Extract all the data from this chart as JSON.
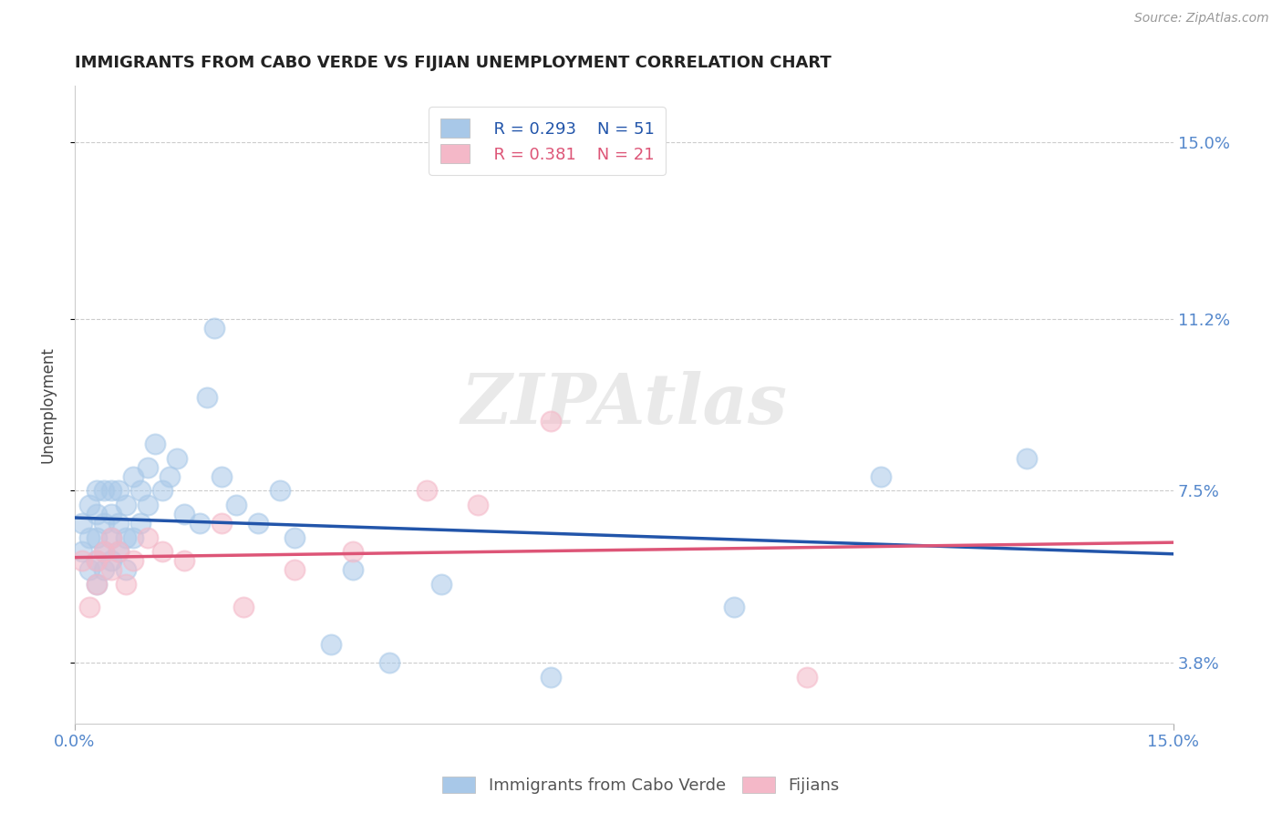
{
  "title": "IMMIGRANTS FROM CABO VERDE VS FIJIAN UNEMPLOYMENT CORRELATION CHART",
  "source_text": "Source: ZipAtlas.com",
  "ylabel": "Unemployment",
  "xlim": [
    0.0,
    0.15
  ],
  "ylim": [
    0.025,
    0.162
  ],
  "ytick_positions": [
    0.038,
    0.075,
    0.112,
    0.15
  ],
  "ytick_labels": [
    "3.8%",
    "7.5%",
    "11.2%",
    "15.0%"
  ],
  "cabo_verde_color": "#a8c8e8",
  "fijian_color": "#f4b8c8",
  "cabo_verde_line_color": "#2255aa",
  "fijian_line_color": "#dd5577",
  "legend_r1": "R = 0.293",
  "legend_n1": "N = 51",
  "legend_r2": "R = 0.381",
  "legend_n2": "N = 21",
  "watermark": "ZIPAtlas",
  "background_color": "#ffffff",
  "cabo_verde_x": [
    0.001,
    0.001,
    0.002,
    0.002,
    0.002,
    0.003,
    0.003,
    0.003,
    0.003,
    0.003,
    0.004,
    0.004,
    0.004,
    0.004,
    0.005,
    0.005,
    0.005,
    0.005,
    0.006,
    0.006,
    0.006,
    0.007,
    0.007,
    0.007,
    0.008,
    0.008,
    0.009,
    0.009,
    0.01,
    0.01,
    0.011,
    0.012,
    0.013,
    0.014,
    0.015,
    0.017,
    0.018,
    0.019,
    0.02,
    0.022,
    0.025,
    0.028,
    0.03,
    0.035,
    0.038,
    0.043,
    0.05,
    0.065,
    0.09,
    0.11,
    0.13
  ],
  "cabo_verde_y": [
    0.062,
    0.068,
    0.058,
    0.065,
    0.072,
    0.055,
    0.06,
    0.065,
    0.07,
    0.075,
    0.058,
    0.062,
    0.068,
    0.075,
    0.06,
    0.065,
    0.07,
    0.075,
    0.062,
    0.068,
    0.075,
    0.058,
    0.065,
    0.072,
    0.065,
    0.078,
    0.068,
    0.075,
    0.072,
    0.08,
    0.085,
    0.075,
    0.078,
    0.082,
    0.07,
    0.068,
    0.095,
    0.11,
    0.078,
    0.072,
    0.068,
    0.075,
    0.065,
    0.042,
    0.058,
    0.038,
    0.055,
    0.035,
    0.05,
    0.078,
    0.082
  ],
  "fijian_x": [
    0.001,
    0.002,
    0.003,
    0.003,
    0.004,
    0.005,
    0.005,
    0.006,
    0.007,
    0.008,
    0.01,
    0.012,
    0.015,
    0.02,
    0.023,
    0.03,
    0.038,
    0.048,
    0.055,
    0.065,
    0.1
  ],
  "fijian_y": [
    0.06,
    0.05,
    0.055,
    0.06,
    0.062,
    0.058,
    0.065,
    0.062,
    0.055,
    0.06,
    0.065,
    0.062,
    0.06,
    0.068,
    0.05,
    0.058,
    0.062,
    0.075,
    0.072,
    0.09,
    0.035
  ]
}
